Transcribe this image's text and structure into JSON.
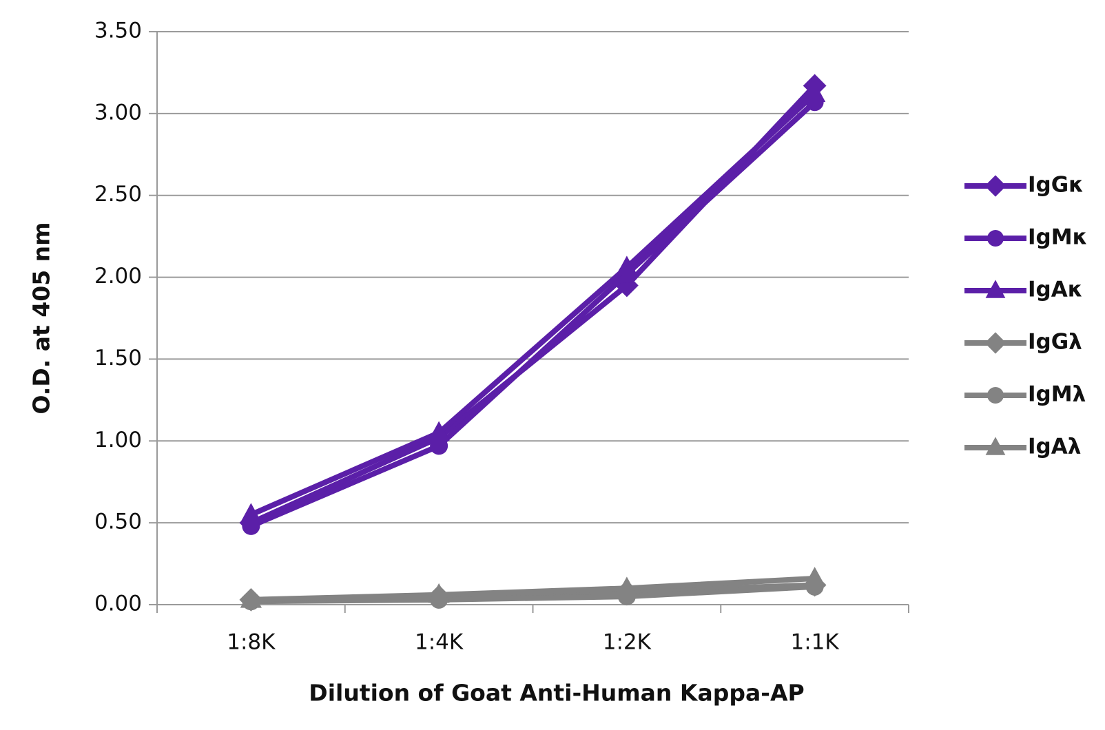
{
  "chart_data": {
    "type": "line",
    "x_label": "Dilution of Goat Anti-Human Kappa-AP",
    "y_label": "O.D. at 405 nm",
    "categories": [
      "1:8K",
      "1:4K",
      "1:2K",
      "1:1K"
    ],
    "series": [
      {
        "name": "IgGκ",
        "color": "#5b1fa8",
        "marker": "diamond",
        "values": [
          0.5,
          1.02,
          1.95,
          3.17
        ]
      },
      {
        "name": "IgMκ",
        "color": "#5b1fa8",
        "marker": "circle",
        "values": [
          0.48,
          0.97,
          2.02,
          3.07
        ]
      },
      {
        "name": "IgAκ",
        "color": "#5b1fa8",
        "marker": "triangle",
        "values": [
          0.55,
          1.05,
          2.06,
          3.12
        ]
      },
      {
        "name": "IgGλ",
        "color": "#838383",
        "marker": "diamond",
        "values": [
          0.03,
          0.05,
          0.08,
          0.12
        ]
      },
      {
        "name": "IgMλ",
        "color": "#838383",
        "marker": "circle",
        "values": [
          0.02,
          0.03,
          0.05,
          0.11
        ]
      },
      {
        "name": "IgAλ",
        "color": "#838383",
        "marker": "triangle",
        "values": [
          0.03,
          0.06,
          0.1,
          0.16
        ]
      }
    ],
    "ylim": [
      0,
      3.5
    ],
    "yticks": [
      {
        "value": 0,
        "label": "0.00"
      },
      {
        "value": 0.5,
        "label": "0.50"
      },
      {
        "value": 1,
        "label": "1.00"
      },
      {
        "value": 1.5,
        "label": "1.50"
      },
      {
        "value": 2,
        "label": "2.00"
      },
      {
        "value": 2.5,
        "label": "2.50"
      },
      {
        "value": 3,
        "label": "3.00"
      },
      {
        "value": 3.5,
        "label": "3.50"
      }
    ],
    "grid": true,
    "legend": "right"
  }
}
